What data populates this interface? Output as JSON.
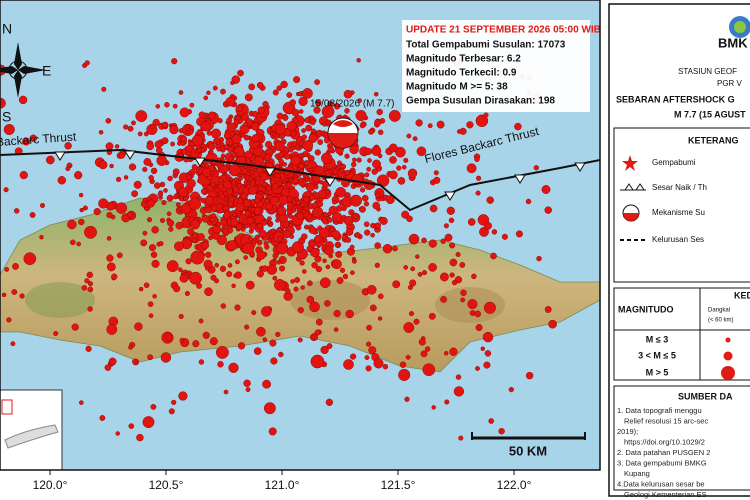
{
  "map": {
    "info": {
      "update": "UPDATE 21 SEPTEMBER 2026 05:00 WIB",
      "lines": [
        "Total Gempabumi Susulan: 17073",
        "Magnitudo Terbesar: 6.2",
        "Magnitudo Terkecil: 0.9",
        "Magnitudo M >= 5: 38",
        "Gempa Susulan Dirasakan: 198"
      ]
    },
    "epicenter_label": "15/08/2026 (M 7.7)",
    "faults": [
      "Backarc Thrust",
      "Flores Backarc Thrust"
    ],
    "compass": {
      "north": "N",
      "east": "E",
      "south": "S"
    },
    "scale": "50 KM",
    "longitudes": [
      "120.0°",
      "120.5°",
      "121.0°",
      "121.5°",
      "122.0°"
    ]
  },
  "panel": {
    "agency": "BMK",
    "station": "STASIUN GEOF",
    "station2": "PGR V",
    "title": "SEBARAN AFTERSHOCK G",
    "subtitle": "M 7.7 (15 AGUST",
    "legend_title": "KETERANG",
    "legend": [
      "Gempabumi",
      "Sesar Naik / Th",
      "Mekanisme Su",
      "Kelurusan Ses"
    ],
    "magnitude_table": {
      "header": "MAGNITUDO",
      "depth_header": "KED",
      "shallow": "Dangkal",
      "shallow_range": "(< 60 km)",
      "rows": [
        "M ≤ 3",
        "3 < M ≤ 5",
        "M > 5"
      ]
    },
    "sources_title": "SUMBER DA",
    "sources": [
      "1. Data topografi menggu",
      "Relief resolusi 15 arc-sec",
      "2019);",
      "https://doi.org/10.1029/2",
      "2. Data patahan PUSGEN 2",
      "3. Data gempabumi BMKG",
      "Kupang",
      "4.Data kelurusan sesar be",
      "Geologi Kementerian ES"
    ]
  }
}
